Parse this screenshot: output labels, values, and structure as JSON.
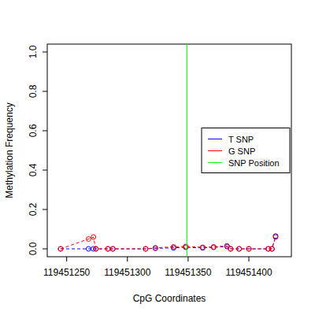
{
  "chart_data": {
    "type": "line",
    "x_label": "CpG Coordinates",
    "y_label": "Methylation Frequency",
    "x": [
      119451245,
      119451268,
      119451272,
      119451274,
      119451284,
      119451288,
      119451315,
      119451323,
      119451338,
      119451348,
      119451362,
      119451371,
      119451382,
      119451385,
      119451392,
      119451400,
      119451416,
      119451419,
      119451422
    ],
    "series": [
      {
        "name": "T SNP",
        "color": "#0000ff",
        "marker": "circle",
        "line_style": "dashed",
        "values": [
          0,
          0,
          0,
          0,
          0,
          0,
          0,
          0.003,
          0.005,
          0.008,
          0.005,
          0.008,
          0.012,
          0,
          0,
          0,
          0,
          0,
          0.065
        ]
      },
      {
        "name": "G SNP",
        "color": "#ff0000",
        "marker": "circle",
        "line_style": "dashed",
        "values": [
          0,
          0.05,
          0.06,
          0,
          0,
          0,
          0,
          0.005,
          0.01,
          0.012,
          0.008,
          0.01,
          0.015,
          0,
          0,
          0,
          0,
          0,
          0.06
        ]
      }
    ],
    "vlines": [
      {
        "name": "SNP Position",
        "color": "#00ff00",
        "x": 119451349
      }
    ],
    "xlim": [
      119451234,
      119451435
    ],
    "ylim": [
      -0.04,
      1.04
    ],
    "xticks": [
      119451250,
      119451300,
      119451350,
      119451400
    ],
    "yticks": [
      {
        "value": 0,
        "label": "0.0"
      },
      0.2,
      0.4,
      0.6,
      0.8,
      {
        "value": 1,
        "label": "1.0"
      }
    ],
    "legend": "right"
  }
}
